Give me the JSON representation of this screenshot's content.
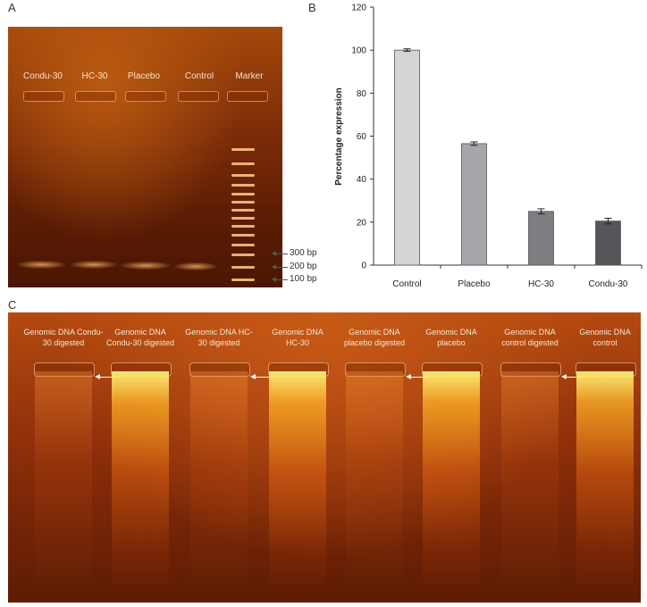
{
  "panels": {
    "a_label": "A",
    "b_label": "B",
    "c_label": "C"
  },
  "gel_a": {
    "lanes": [
      "Condu-30",
      "HC-30",
      "Placebo",
      "Control",
      "Marker"
    ],
    "bp_markers": [
      "300 bp",
      "200 bp",
      "100 bp"
    ]
  },
  "chart_data": {
    "type": "bar",
    "categories": [
      "Control",
      "Placebo",
      "HC-30",
      "Condu-30"
    ],
    "values": [
      100,
      56.5,
      25,
      20.5
    ],
    "errors": [
      0.6,
      0.8,
      1.2,
      1.3
    ],
    "colors": [
      "#d4d5d7",
      "#a5a7aa",
      "#7c7e81",
      "#54565a"
    ],
    "title": "",
    "xlabel": "",
    "ylabel": "Percentage expression",
    "ylim": [
      0,
      120
    ],
    "yticks": [
      0,
      20,
      40,
      60,
      80,
      100,
      120
    ],
    "grid": false
  },
  "gel_c": {
    "lanes": [
      "Genomic DNA Condu-30 digested",
      "Genomic DNA Condu-30 digested",
      "Genomic DNA HC-30 digested",
      "Genomic DNA HC-30",
      "Genomic DNA placebo digested",
      "Genomic DNA placebo",
      "Genomic DNA control digested",
      "Genomic DNA control"
    ],
    "lane_lines": [
      [
        "Genomic DNA Condu-",
        "30 digested"
      ],
      [
        "Genomic DNA",
        "Condu-30 digested"
      ],
      [
        "Genomic DNA HC-",
        "30 digested"
      ],
      [
        "Genomic DNA",
        "HC-30"
      ],
      [
        "Genomic DNA",
        "placebo digested"
      ],
      [
        "Genomic DNA",
        "placebo"
      ],
      [
        "Genomic DNA",
        "control digested"
      ],
      [
        "Genomic DNA",
        "control"
      ]
    ]
  }
}
